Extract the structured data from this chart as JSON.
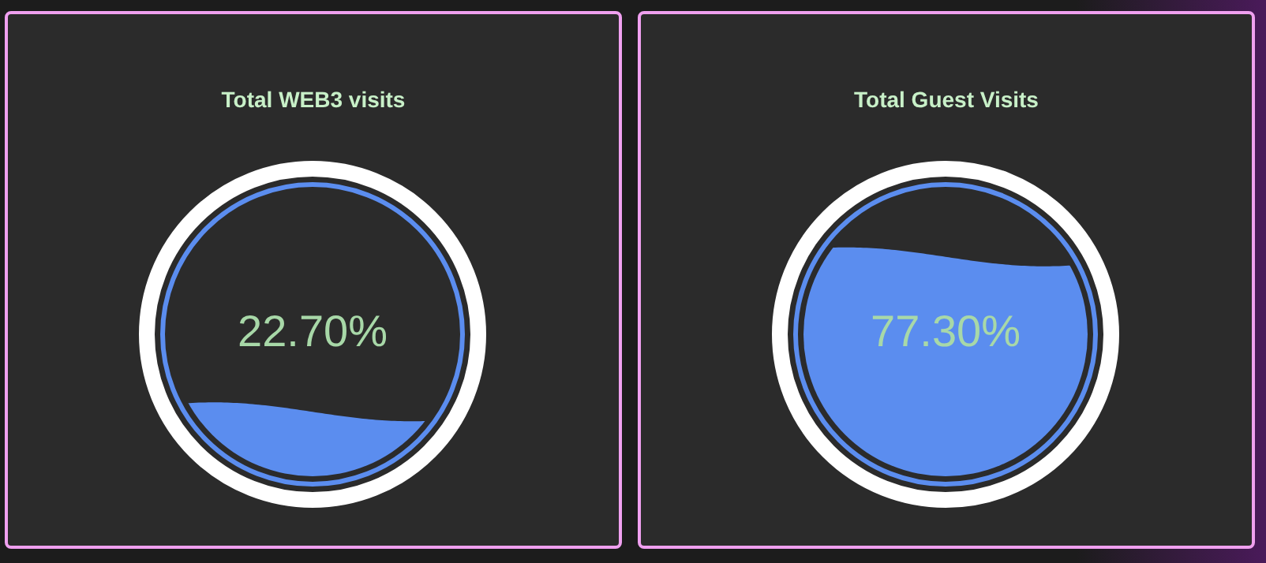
{
  "chart_data": [
    {
      "type": "other",
      "title": "Total WEB3 visits",
      "values": [
        22.7
      ],
      "value_labels": [
        "22.70%"
      ]
    },
    {
      "type": "other",
      "title": "Total Guest Visits",
      "values": [
        77.3
      ],
      "value_labels": [
        "77.30%"
      ]
    }
  ]
}
